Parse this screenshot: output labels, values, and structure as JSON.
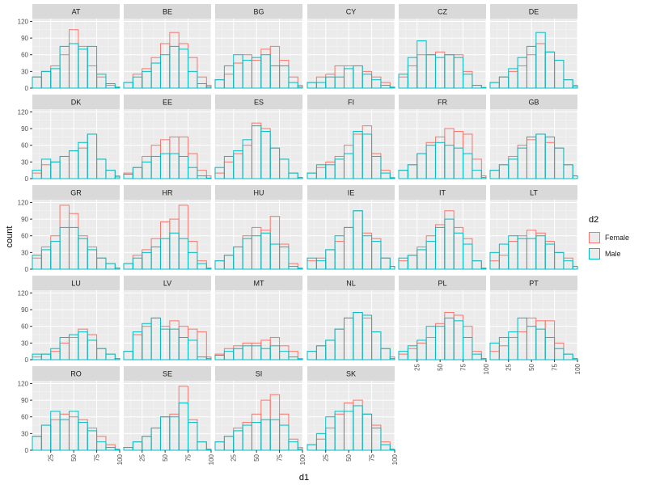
{
  "chart_data": {
    "type": "histogram-facets",
    "xlabel": "d1",
    "ylabel": "count",
    "x_bin_centers": [
      10,
      20,
      30,
      40,
      50,
      60,
      70,
      80,
      90,
      100
    ],
    "x_ticks": [
      25,
      50,
      75,
      100
    ],
    "y_ticks": [
      0,
      30,
      60,
      90,
      120
    ],
    "xlim": [
      5,
      100
    ],
    "ylim": [
      0,
      125
    ],
    "grid": true,
    "legend": {
      "title": "d2",
      "position": "right",
      "entries": [
        {
          "name": "Female",
          "color": "#F8766D"
        },
        {
          "name": "Male",
          "color": "#00BFC4"
        }
      ]
    },
    "series_names": [
      "Female",
      "Male"
    ],
    "panels": [
      {
        "label": "AT",
        "female": [
          20,
          30,
          40,
          60,
          105,
          75,
          40,
          20,
          5,
          2
        ],
        "male": [
          20,
          30,
          35,
          75,
          80,
          70,
          75,
          25,
          8,
          1
        ]
      },
      {
        "label": "BE",
        "female": [
          10,
          25,
          35,
          55,
          80,
          100,
          80,
          55,
          20,
          5
        ],
        "male": [
          10,
          20,
          30,
          45,
          60,
          75,
          70,
          30,
          8,
          2
        ]
      },
      {
        "label": "BG",
        "female": [
          15,
          25,
          45,
          60,
          50,
          70,
          75,
          50,
          20,
          5
        ],
        "male": [
          15,
          40,
          60,
          50,
          55,
          60,
          40,
          40,
          10,
          2
        ]
      },
      {
        "label": "CY",
        "female": [
          10,
          20,
          25,
          40,
          40,
          40,
          30,
          20,
          10,
          2
        ],
        "male": [
          10,
          10,
          20,
          20,
          35,
          40,
          25,
          15,
          5,
          1
        ]
      },
      {
        "label": "CZ",
        "female": [
          20,
          40,
          60,
          60,
          65,
          60,
          60,
          30,
          5,
          1
        ],
        "male": [
          25,
          55,
          85,
          60,
          55,
          60,
          55,
          25,
          5,
          1
        ]
      },
      {
        "label": "DE",
        "female": [
          10,
          20,
          30,
          40,
          60,
          80,
          65,
          50,
          15,
          5
        ],
        "male": [
          10,
          20,
          35,
          55,
          75,
          100,
          65,
          50,
          15,
          3
        ]
      },
      {
        "label": "DK",
        "female": [
          10,
          25,
          30,
          40,
          50,
          55,
          80,
          35,
          15,
          5
        ],
        "male": [
          15,
          35,
          30,
          40,
          50,
          65,
          80,
          35,
          15,
          3
        ]
      },
      {
        "label": "EE",
        "female": [
          10,
          20,
          40,
          60,
          70,
          75,
          75,
          45,
          15,
          5
        ],
        "male": [
          8,
          20,
          30,
          40,
          45,
          45,
          40,
          20,
          5,
          1
        ]
      },
      {
        "label": "ES",
        "female": [
          10,
          30,
          45,
          60,
          100,
          90,
          55,
          35,
          10,
          2
        ],
        "male": [
          20,
          40,
          50,
          70,
          95,
          85,
          55,
          35,
          10,
          2
        ]
      },
      {
        "label": "FI",
        "female": [
          10,
          20,
          30,
          40,
          60,
          80,
          95,
          45,
          15,
          2
        ],
        "male": [
          10,
          25,
          25,
          35,
          45,
          85,
          80,
          40,
          10,
          1
        ]
      },
      {
        "label": "FR",
        "female": [
          15,
          25,
          45,
          65,
          75,
          90,
          85,
          80,
          35,
          5
        ],
        "male": [
          15,
          25,
          45,
          60,
          65,
          60,
          55,
          45,
          15,
          2
        ]
      },
      {
        "label": "GB",
        "female": [
          15,
          25,
          40,
          60,
          70,
          80,
          65,
          55,
          25,
          5
        ],
        "male": [
          15,
          25,
          35,
          55,
          75,
          80,
          75,
          55,
          25,
          5
        ]
      },
      {
        "label": "GR",
        "female": [
          20,
          40,
          60,
          115,
          100,
          60,
          40,
          20,
          10,
          2
        ],
        "male": [
          25,
          35,
          50,
          75,
          75,
          55,
          35,
          20,
          10,
          2
        ]
      },
      {
        "label": "HR",
        "female": [
          10,
          25,
          35,
          55,
          85,
          90,
          115,
          50,
          15,
          2
        ],
        "male": [
          10,
          20,
          30,
          40,
          55,
          65,
          55,
          30,
          10,
          1
        ]
      },
      {
        "label": "HU",
        "female": [
          15,
          25,
          40,
          60,
          75,
          70,
          95,
          45,
          10,
          2
        ],
        "male": [
          15,
          25,
          40,
          55,
          60,
          65,
          45,
          40,
          5,
          1
        ]
      },
      {
        "label": "IE",
        "female": [
          15,
          20,
          35,
          50,
          75,
          105,
          65,
          55,
          20,
          5
        ],
        "male": [
          20,
          15,
          35,
          60,
          75,
          105,
          60,
          50,
          20,
          5
        ]
      },
      {
        "label": "IT",
        "female": [
          15,
          25,
          40,
          60,
          80,
          105,
          75,
          55,
          15,
          2
        ],
        "male": [
          20,
          25,
          35,
          50,
          75,
          90,
          65,
          45,
          15,
          1
        ]
      },
      {
        "label": "LT",
        "female": [
          15,
          25,
          50,
          60,
          70,
          65,
          50,
          30,
          20,
          5
        ],
        "male": [
          30,
          45,
          60,
          55,
          55,
          60,
          45,
          30,
          15,
          5
        ]
      },
      {
        "label": "LU",
        "female": [
          5,
          10,
          15,
          30,
          40,
          55,
          45,
          20,
          10,
          2
        ],
        "male": [
          10,
          10,
          20,
          40,
          45,
          50,
          35,
          20,
          10,
          2
        ]
      },
      {
        "label": "LV",
        "female": [
          15,
          45,
          60,
          75,
          60,
          70,
          60,
          55,
          50,
          5
        ],
        "male": [
          15,
          50,
          65,
          75,
          55,
          55,
          40,
          35,
          5,
          2
        ]
      },
      {
        "label": "MT",
        "female": [
          10,
          20,
          25,
          30,
          30,
          35,
          40,
          25,
          15,
          2
        ],
        "male": [
          8,
          15,
          20,
          25,
          25,
          20,
          25,
          15,
          5,
          1
        ]
      },
      {
        "label": "NL",
        "female": [
          15,
          25,
          35,
          55,
          75,
          85,
          75,
          50,
          20,
          5
        ],
        "male": [
          15,
          25,
          35,
          55,
          75,
          85,
          80,
          50,
          20,
          2
        ]
      },
      {
        "label": "PL",
        "female": [
          10,
          20,
          30,
          40,
          65,
          85,
          80,
          60,
          15,
          2
        ],
        "male": [
          15,
          25,
          35,
          60,
          60,
          75,
          70,
          40,
          10,
          2
        ]
      },
      {
        "label": "PT",
        "female": [
          15,
          25,
          40,
          50,
          75,
          70,
          70,
          30,
          10,
          2
        ],
        "male": [
          30,
          40,
          50,
          75,
          60,
          55,
          40,
          20,
          10,
          2
        ]
      },
      {
        "label": "RO",
        "female": [
          25,
          45,
          55,
          65,
          60,
          55,
          40,
          25,
          10,
          2
        ],
        "male": [
          25,
          45,
          70,
          55,
          70,
          50,
          35,
          15,
          5,
          1
        ]
      },
      {
        "label": "SE",
        "female": [
          5,
          15,
          25,
          40,
          60,
          65,
          115,
          55,
          15,
          2
        ],
        "male": [
          5,
          15,
          25,
          40,
          60,
          60,
          85,
          50,
          15,
          1
        ]
      },
      {
        "label": "SI",
        "female": [
          15,
          25,
          40,
          50,
          65,
          90,
          100,
          65,
          20,
          5
        ],
        "male": [
          15,
          25,
          35,
          45,
          50,
          55,
          55,
          45,
          15,
          2
        ]
      },
      {
        "label": "SK",
        "female": [
          10,
          20,
          40,
          65,
          85,
          90,
          65,
          45,
          15,
          2
        ],
        "male": [
          10,
          30,
          60,
          70,
          70,
          80,
          65,
          40,
          10,
          1
        ]
      }
    ]
  }
}
